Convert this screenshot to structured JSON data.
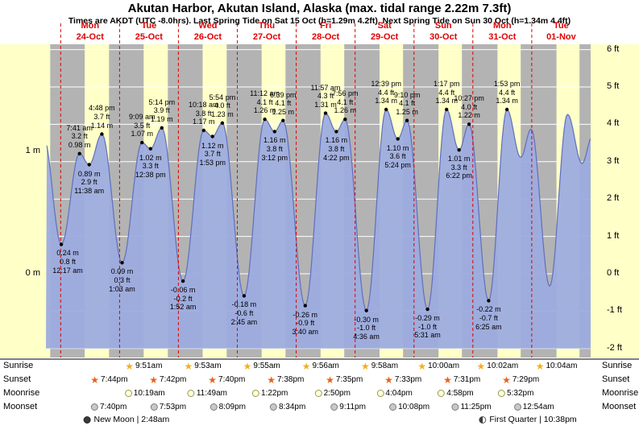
{
  "chart_data": {
    "type": "area",
    "title": "Akutan Harbor, Akutan Island, Alaska (max. tidal range 2.22m 7.3ft)",
    "subtitle": "Times are AKDT (UTC -8.0hrs). Last Spring Tide on Sat 15 Oct (h=1.29m 4.2ft). Next Spring Tide on Sun 30 Oct (h=1.34m 4.4ft)",
    "ylabel_left_unit": "m",
    "ylabel_right_unit": "ft",
    "y_axis_left_ticks": [
      {
        "value_m": 1,
        "label": "1 m"
      },
      {
        "value_m": 0,
        "label": "0 m"
      }
    ],
    "y_axis_right_ticks": [
      {
        "value_ft": 6,
        "label": "6 ft"
      },
      {
        "value_ft": 5,
        "label": "5 ft"
      },
      {
        "value_ft": 4,
        "label": "4 ft"
      },
      {
        "value_ft": 3,
        "label": "3 ft"
      },
      {
        "value_ft": 2,
        "label": "2 ft"
      },
      {
        "value_ft": 1,
        "label": "1 ft"
      },
      {
        "value_ft": 0,
        "label": "0 ft"
      },
      {
        "value_ft": -1,
        "label": "-1 ft"
      },
      {
        "value_ft": -2,
        "label": "-2 ft"
      }
    ],
    "days": [
      {
        "dow": "Mon",
        "date": "24-Oct"
      },
      {
        "dow": "Tue",
        "date": "25-Oct"
      },
      {
        "dow": "Wed",
        "date": "26-Oct"
      },
      {
        "dow": "Thu",
        "date": "27-Oct"
      },
      {
        "dow": "Fri",
        "date": "28-Oct"
      },
      {
        "dow": "Sat",
        "date": "29-Oct"
      },
      {
        "dow": "Sun",
        "date": "30-Oct"
      },
      {
        "dow": "Mon",
        "date": "31-Oct"
      },
      {
        "dow": "Tue",
        "date": "01-Nov"
      }
    ],
    "tides": [
      {
        "day": 0,
        "type": "low",
        "time": "12:17 am",
        "height_m": 0.24,
        "height_ft": 0.8
      },
      {
        "day": 0,
        "type": "high",
        "time": "7:41 am",
        "height_m": 0.98,
        "height_ft": 3.2
      },
      {
        "day": 0,
        "type": "low",
        "time": "11:38 am",
        "height_m": 0.89,
        "height_ft": 2.9
      },
      {
        "day": 0,
        "type": "high",
        "time": "4:48 pm",
        "height_m": 1.14,
        "height_ft": 3.7
      },
      {
        "day": 1,
        "type": "low",
        "time": "1:03 am",
        "height_m": 0.09,
        "height_ft": 0.3
      },
      {
        "day": 1,
        "type": "high",
        "time": "9:09 am",
        "height_m": 1.07,
        "height_ft": 3.5
      },
      {
        "day": 1,
        "type": "low",
        "time": "12:38 pm",
        "height_m": 1.02,
        "height_ft": 3.3
      },
      {
        "day": 1,
        "type": "high",
        "time": "5:14 pm",
        "height_m": 1.19,
        "height_ft": 3.9
      },
      {
        "day": 2,
        "type": "low",
        "time": "1:52 am",
        "height_m": -0.06,
        "height_ft": -0.2
      },
      {
        "day": 2,
        "type": "high",
        "time": "10:18 am",
        "height_m": 1.17,
        "height_ft": 3.8
      },
      {
        "day": 2,
        "type": "low",
        "time": "1:53 pm",
        "height_m": 1.12,
        "height_ft": 3.7
      },
      {
        "day": 2,
        "type": "high",
        "time": "5:54 pm",
        "height_m": 1.23,
        "height_ft": 4.0
      },
      {
        "day": 3,
        "type": "low",
        "time": "2:45 am",
        "height_m": -0.18,
        "height_ft": -0.6
      },
      {
        "day": 3,
        "type": "high",
        "time": "11:12 am",
        "height_m": 1.26,
        "height_ft": 4.1
      },
      {
        "day": 3,
        "type": "low",
        "time": "3:12 pm",
        "height_m": 1.16,
        "height_ft": 3.8
      },
      {
        "day": 3,
        "type": "high",
        "time": "6:39 pm",
        "height_m": 1.25,
        "height_ft": 4.1
      },
      {
        "day": 4,
        "type": "low",
        "time": "3:40 am",
        "height_m": -0.26,
        "height_ft": -0.9
      },
      {
        "day": 4,
        "type": "high",
        "time": "11:57 am",
        "height_m": 1.31,
        "height_ft": 4.3
      },
      {
        "day": 4,
        "type": "low",
        "time": "4:22 pm",
        "height_m": 1.16,
        "height_ft": 3.8
      },
      {
        "day": 4,
        "type": "high",
        "time": "7:56 pm",
        "height_m": 1.26,
        "height_ft": 4.1
      },
      {
        "day": 5,
        "type": "low",
        "time": "4:36 am",
        "height_m": -0.3,
        "height_ft": -1.0
      },
      {
        "day": 5,
        "type": "high",
        "time": "12:39 pm",
        "height_m": 1.34,
        "height_ft": 4.4
      },
      {
        "day": 5,
        "type": "low",
        "time": "5:24 pm",
        "height_m": 1.1,
        "height_ft": 3.6
      },
      {
        "day": 5,
        "type": "high",
        "time": "9:10 pm",
        "height_m": 1.25,
        "height_ft": 4.1
      },
      {
        "day": 6,
        "type": "low",
        "time": "5:31 am",
        "height_m": -0.29,
        "height_ft": -1.0
      },
      {
        "day": 6,
        "type": "high",
        "time": "1:17 pm",
        "height_m": 1.34,
        "height_ft": 4.4
      },
      {
        "day": 6,
        "type": "low",
        "time": "6:22 pm",
        "height_m": 1.01,
        "height_ft": 3.3
      },
      {
        "day": 6,
        "type": "high",
        "time": "10:27 pm",
        "height_m": 1.22,
        "height_ft": 4.0
      },
      {
        "day": 7,
        "type": "low",
        "time": "6:25 am",
        "height_m": -0.22,
        "height_ft": -0.7
      },
      {
        "day": 7,
        "type": "high",
        "time": "1:53 pm",
        "height_m": 1.34,
        "height_ft": 4.4
      }
    ],
    "astro": {
      "rows": [
        {
          "key": "sunrise",
          "label": "Sunrise",
          "events": [
            {
              "day": 1,
              "time": "9:51am"
            },
            {
              "day": 2,
              "time": "9:53am"
            },
            {
              "day": 3,
              "time": "9:55am"
            },
            {
              "day": 4,
              "time": "9:56am"
            },
            {
              "day": 5,
              "time": "9:58am"
            },
            {
              "day": 6,
              "time": "10:00am"
            },
            {
              "day": 7,
              "time": "10:02am"
            },
            {
              "day": 8,
              "time": "10:04am"
            }
          ]
        },
        {
          "key": "sunset",
          "label": "Sunset",
          "events": [
            {
              "day": 0,
              "time": "7:44pm"
            },
            {
              "day": 1,
              "time": "7:42pm"
            },
            {
              "day": 2,
              "time": "7:40pm"
            },
            {
              "day": 3,
              "time": "7:38pm"
            },
            {
              "day": 4,
              "time": "7:35pm"
            },
            {
              "day": 5,
              "time": "7:33pm"
            },
            {
              "day": 6,
              "time": "7:31pm"
            },
            {
              "day": 7,
              "time": "7:29pm"
            }
          ]
        },
        {
          "key": "moonrise",
          "label": "Moonrise",
          "events": [
            {
              "day": 1,
              "time": "10:19am"
            },
            {
              "day": 2,
              "time": "11:49am"
            },
            {
              "day": 3,
              "time": "1:22pm"
            },
            {
              "day": 4,
              "time": "2:50pm"
            },
            {
              "day": 5,
              "time": "4:04pm"
            },
            {
              "day": 6,
              "time": "4:58pm"
            },
            {
              "day": 7,
              "time": "5:32pm"
            }
          ]
        },
        {
          "key": "moonset",
          "label": "Moonset",
          "events": [
            {
              "day": 0,
              "time": "7:40pm"
            },
            {
              "day": 1,
              "time": "7:53pm"
            },
            {
              "day": 2,
              "time": "8:09pm"
            },
            {
              "day": 3,
              "time": "8:34pm"
            },
            {
              "day": 4,
              "time": "9:11pm"
            },
            {
              "day": 5,
              "time": "10:08pm"
            },
            {
              "day": 6,
              "time": "11:25pm"
            },
            {
              "day": 8,
              "time": "12:54am"
            }
          ]
        }
      ],
      "moon_phases": [
        {
          "name": "New Moon",
          "time": "2:48am",
          "day": 1
        },
        {
          "name": "First Quarter",
          "time": "10:38pm",
          "day": 7
        }
      ]
    },
    "colors": {
      "daylight_band": "#ffffc8",
      "night_band": "#b3b3b3",
      "tide_fill": "#9dacdf",
      "tide_stroke": "#5f6fbe",
      "day_label_red": "#e00000",
      "sunrise_star": "#f2b01e",
      "sunset_star": "#e8611a"
    }
  }
}
